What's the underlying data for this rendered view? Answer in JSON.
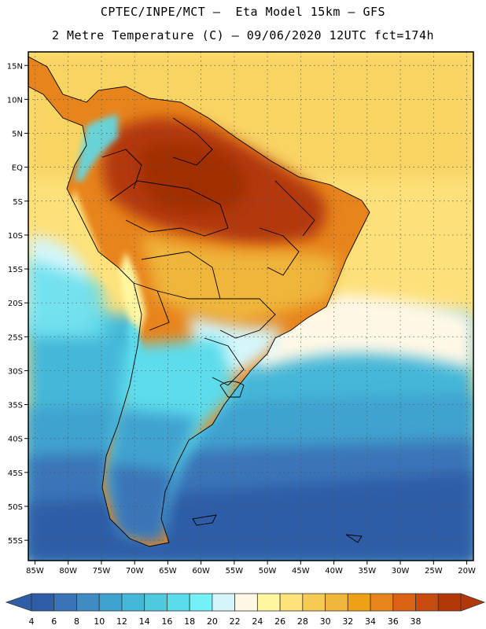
{
  "header": {
    "line1": "CPTEC/INPE/MCT –  Eta Model 15km – GFS",
    "line2": "2 Metre Temperature (C) – 09/06/2020 12UTC fct=174h"
  },
  "map": {
    "lon_labels": [
      "85W",
      "80W",
      "75W",
      "70W",
      "65W",
      "60W",
      "55W",
      "50W",
      "45W",
      "40W",
      "35W",
      "30W",
      "25W",
      "20W"
    ],
    "lat_labels": [
      "15N",
      "10N",
      "5N",
      "EQ",
      "5S",
      "10S",
      "15S",
      "20S",
      "25S",
      "30S",
      "35S",
      "40S",
      "45S",
      "50S",
      "55S"
    ],
    "lon_range": [
      -86,
      -19
    ],
    "lat_range": [
      17,
      -58
    ],
    "grid": true,
    "gridline_style": "dotted"
  },
  "colorbar": {
    "values": [
      "4",
      "6",
      "8",
      "10",
      "12",
      "14",
      "16",
      "18",
      "20",
      "22",
      "24",
      "26",
      "28",
      "30",
      "32",
      "34",
      "36",
      "38"
    ],
    "colors": [
      "#2f5da8",
      "#3a74b8",
      "#3f8cc4",
      "#3fa2cf",
      "#45b7d8",
      "#4fc9de",
      "#5bdcec",
      "#73f0f8",
      "#d4f6fb",
      "#fff8e6",
      "#fff7a0",
      "#fde37a",
      "#f5cb52",
      "#efb63a",
      "#efa116",
      "#e8841c",
      "#dc6212",
      "#c84a0e",
      "#b33808"
    ],
    "extend": "both"
  }
}
